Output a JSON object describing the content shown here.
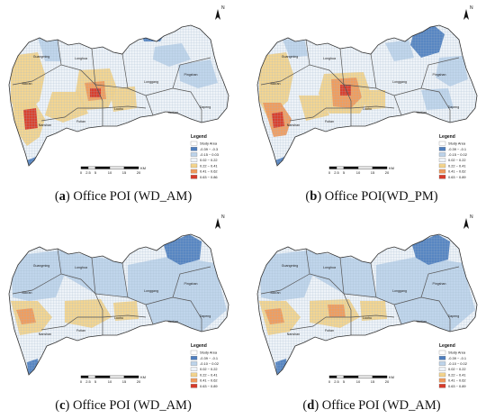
{
  "panels": [
    {
      "letter": "a",
      "caption_text": "Office POI (WD_AM)",
      "district_labels": [
        "Guangming",
        "Longhua",
        "Bao'an",
        "Longgang",
        "Pingshan",
        "Futian",
        "Luohu",
        "Yantian",
        "Dapeng",
        "Nanshan"
      ],
      "legend": {
        "title": "Legend",
        "entries": [
          {
            "label": "Study Area",
            "color": "#ffffff"
          },
          {
            "label": "-0.39 ~ -0.3",
            "color": "#4f7fbf"
          },
          {
            "label": "-0.15 ~ 0.03",
            "color": "#bdd3ea"
          },
          {
            "label": "0.02 ~ 0.22",
            "color": "#eef3f8"
          },
          {
            "label": "0.22 ~ 0.41",
            "color": "#f2d38c"
          },
          {
            "label": "0.41 ~ 0.62",
            "color": "#ef9a5c"
          },
          {
            "label": "0.63 ~ 0.86",
            "color": "#d73a2a"
          }
        ]
      },
      "scale": {
        "ticks": [
          "0",
          "2.5",
          "5",
          "10",
          "15",
          "20"
        ],
        "unit": "KM"
      },
      "north": "N"
    },
    {
      "letter": "b",
      "caption_text": "Office POI(WD_PM)",
      "district_labels": [
        "Guangming",
        "Longhua",
        "Bao'an",
        "Longgang",
        "Pingshan",
        "Futian",
        "Luohu",
        "Yantian",
        "Dapeng",
        "Nanshan"
      ],
      "legend": {
        "title": "Legend",
        "entries": [
          {
            "label": "Study Area",
            "color": "#ffffff"
          },
          {
            "label": "-0.39 ~ -0.1",
            "color": "#4f7fbf"
          },
          {
            "label": "-0.15 ~ 0.02",
            "color": "#bdd3ea"
          },
          {
            "label": "0.02 ~ 0.22",
            "color": "#eef3f8"
          },
          {
            "label": "0.22 ~ 0.41",
            "color": "#f2d38c"
          },
          {
            "label": "0.41 ~ 0.62",
            "color": "#ef9a5c"
          },
          {
            "label": "0.63 ~ 0.89",
            "color": "#d73a2a"
          }
        ]
      },
      "scale": {
        "ticks": [
          "0",
          "2.5",
          "5",
          "10",
          "15",
          "20"
        ],
        "unit": "KM"
      },
      "north": "N"
    },
    {
      "letter": "c",
      "caption_text": "Office POI (WD_AM)",
      "district_labels": [
        "Guangming",
        "Longhua",
        "Bao'an",
        "Longgang",
        "Pingshan",
        "Futian",
        "Luohu",
        "Yantian",
        "Dapeng",
        "Nanshan"
      ],
      "legend": {
        "title": "Legend",
        "entries": [
          {
            "label": "Study Area",
            "color": "#ffffff"
          },
          {
            "label": "-0.39 ~ -0.1",
            "color": "#4f7fbf"
          },
          {
            "label": "-0.10 ~ 0.02",
            "color": "#bdd3ea"
          },
          {
            "label": "0.02 ~ 0.22",
            "color": "#eef3f8"
          },
          {
            "label": "0.22 ~ 0.41",
            "color": "#f2d38c"
          },
          {
            "label": "0.41 ~ 0.62",
            "color": "#ef9a5c"
          },
          {
            "label": "0.63 ~ 0.89",
            "color": "#d73a2a"
          }
        ]
      },
      "scale": {
        "ticks": [
          "0",
          "2.5",
          "5",
          "10",
          "15",
          "20"
        ],
        "unit": "KM"
      },
      "north": "N"
    },
    {
      "letter": "d",
      "caption_text": "Office POI (WD_AM)",
      "district_labels": [
        "Guangming",
        "Longhua",
        "Bao'an",
        "Longgang",
        "Pingshan",
        "Futian",
        "Luohu",
        "Yantian",
        "Dapeng",
        "Nanshan"
      ],
      "legend": {
        "title": "Legend",
        "entries": [
          {
            "label": "Study Area",
            "color": "#ffffff"
          },
          {
            "label": "-0.39 ~ -0.1",
            "color": "#4f7fbf"
          },
          {
            "label": "-0.10 ~ 0.02",
            "color": "#bdd3ea"
          },
          {
            "label": "0.02 ~ 0.22",
            "color": "#eef3f8"
          },
          {
            "label": "0.22 ~ 0.41",
            "color": "#f2d38c"
          },
          {
            "label": "0.41 ~ 0.62",
            "color": "#ef9a5c"
          },
          {
            "label": "0.63 ~ 0.89",
            "color": "#d73a2a"
          }
        ]
      },
      "scale": {
        "ticks": [
          "0",
          "2.5",
          "5",
          "10",
          "15",
          "20"
        ],
        "unit": "KM"
      },
      "north": "N"
    }
  ]
}
